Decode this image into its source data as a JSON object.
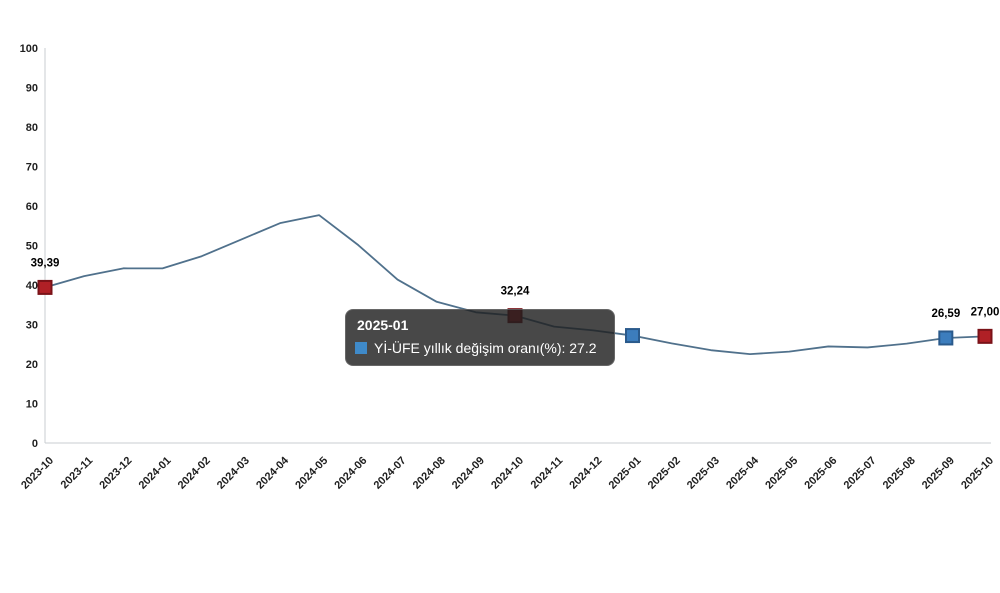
{
  "chart_data": {
    "type": "line",
    "title": "",
    "xlabel": "",
    "ylabel": "",
    "ylim": [
      0,
      100
    ],
    "y_ticks": [
      "0",
      "10",
      "20",
      "30",
      "40",
      "50",
      "60",
      "70",
      "80",
      "90",
      "100"
    ],
    "grid": false,
    "legend": "none",
    "categories": [
      "2023-10",
      "2023-11",
      "2023-12",
      "2024-01",
      "2024-02",
      "2024-03",
      "2024-04",
      "2024-05",
      "2024-06",
      "2024-07",
      "2024-08",
      "2024-09",
      "2024-10",
      "2024-11",
      "2024-12",
      "2025-01",
      "2025-02",
      "2025-03",
      "2025-04",
      "2025-05",
      "2025-06",
      "2025-07",
      "2025-08",
      "2025-09",
      "2025-10"
    ],
    "series": [
      {
        "name": "Yİ-ÜFE yıllık değişim oranı(%)",
        "color": "#50718c",
        "values": [
          39.39,
          42.25,
          44.22,
          44.2,
          47.29,
          51.47,
          55.66,
          57.68,
          50.09,
          41.37,
          35.75,
          33.09,
          32.24,
          29.47,
          28.52,
          27.2,
          25.21,
          23.5,
          22.5,
          23.13,
          24.45,
          24.19,
          25.16,
          26.59,
          27.0
        ]
      }
    ],
    "highlighted_points": [
      {
        "category": "2023-10",
        "index": 0,
        "value_label": "39,39",
        "marker_color": "#b02026",
        "marker_border": "#7a1218"
      },
      {
        "category": "2024-10",
        "index": 12,
        "value_label": "32,24",
        "marker_color": "#b02026",
        "marker_border": "#7a1218"
      },
      {
        "category": "2025-01",
        "index": 15,
        "value_label": "",
        "marker_color": "#3c7dbd",
        "marker_border": "#2a5a8c"
      },
      {
        "category": "2025-09",
        "index": 23,
        "value_label": "26,59",
        "marker_color": "#3c7dbd",
        "marker_border": "#2a5a8c"
      },
      {
        "category": "2025-10",
        "index": 24,
        "value_label": "27,00",
        "marker_color": "#b02026",
        "marker_border": "#7a1218"
      }
    ]
  },
  "tooltip": {
    "title": "2025-01",
    "text": "Yİ-ÜFE yıllık değişim oranı(%): 27.2",
    "swatch_color": "#3f8ac9",
    "anchor_category": "2025-01"
  },
  "axis": {
    "line_color": "#c9ccd1",
    "label_color": "#1f1f1f"
  }
}
